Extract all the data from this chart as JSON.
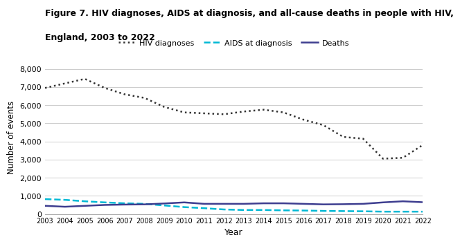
{
  "years": [
    2003,
    2004,
    2005,
    2006,
    2007,
    2008,
    2009,
    2010,
    2011,
    2012,
    2013,
    2014,
    2015,
    2016,
    2017,
    2018,
    2019,
    2020,
    2021,
    2022
  ],
  "hiv_diagnoses": [
    6950,
    7200,
    7450,
    6950,
    6600,
    6400,
    5900,
    5600,
    5550,
    5500,
    5650,
    5750,
    5600,
    5200,
    4900,
    4250,
    4150,
    3050,
    3100,
    3805
  ],
  "aids_at_diagnosis": [
    820,
    780,
    700,
    640,
    590,
    560,
    470,
    380,
    320,
    250,
    220,
    220,
    200,
    190,
    170,
    160,
    150,
    130,
    130,
    130
  ],
  "deaths": [
    450,
    400,
    450,
    500,
    520,
    530,
    580,
    640,
    560,
    560,
    560,
    590,
    590,
    560,
    530,
    540,
    560,
    640,
    700,
    650
  ],
  "title_line1": "Figure 7. HIV diagnoses, AIDS at diagnosis, and all-cause deaths in people with HIV,",
  "title_line2": "England, 2003 to 2022",
  "xlabel": "Year",
  "ylabel": "Number of events",
  "ylim": [
    0,
    8500
  ],
  "yticks": [
    0,
    1000,
    2000,
    3000,
    4000,
    5000,
    6000,
    7000,
    8000
  ],
  "ytick_labels": [
    "0",
    "1,000",
    "2,000",
    "3,000",
    "4,000",
    "5,000",
    "6,000",
    "7,000",
    "8,000"
  ],
  "hiv_color": "#333333",
  "aids_color": "#00b8d4",
  "deaths_color": "#3d3d8f",
  "background_color": "#ffffff",
  "legend_labels": [
    "HIV diagnoses",
    "AIDS at diagnosis",
    "Deaths"
  ]
}
